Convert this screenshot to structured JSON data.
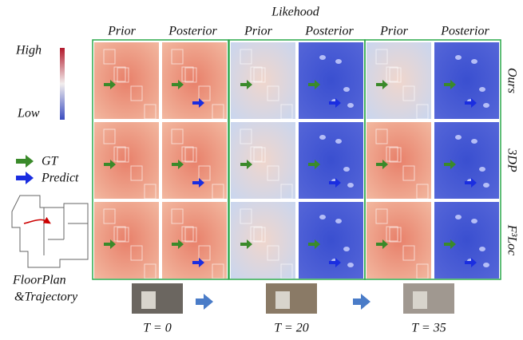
{
  "header": {
    "title": "Likehood"
  },
  "groups": [
    {
      "prior": "Prior",
      "posterior": "Posterior"
    },
    {
      "prior": "Prior",
      "posterior": "Posterior"
    },
    {
      "prior": "Prior",
      "posterior": "Posterior"
    }
  ],
  "colorbar": {
    "high": "High",
    "low": "Low"
  },
  "legend": {
    "gt": "GT",
    "predict": "Predict"
  },
  "floorplan": {
    "line1": "FloorPlan",
    "line2": "&Trajectory"
  },
  "row_labels": [
    "Ours",
    "3DP",
    "F³Loc"
  ],
  "timesteps": [
    "T = 0",
    "T = 20",
    "T = 35"
  ]
}
